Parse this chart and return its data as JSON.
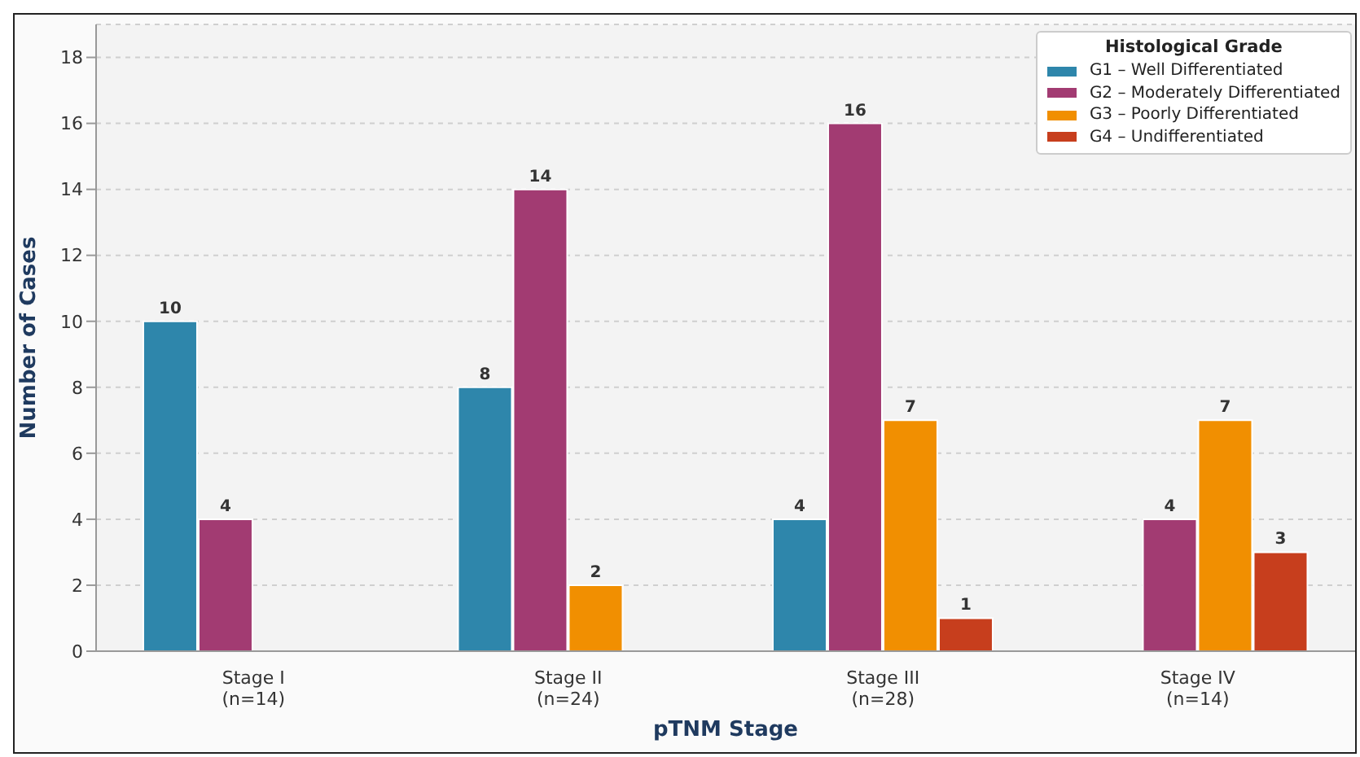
{
  "chart_data": {
    "type": "bar",
    "xlabel": "pTNM Stage",
    "ylabel": "Number of Cases",
    "legend_title": "Histological Grade",
    "categories": [
      "Stage I\n(n=14)",
      "Stage II\n(n=24)",
      "Stage III\n(n=28)",
      "Stage IV\n(n=14)"
    ],
    "series": [
      {
        "name": "G1 – Well Differentiated",
        "color": "#2e86ab",
        "values": [
          10,
          8,
          4,
          null
        ]
      },
      {
        "name": "G2 – Moderately Differentiated",
        "color": "#a23b72",
        "values": [
          4,
          14,
          16,
          4
        ]
      },
      {
        "name": "G3 – Poorly Differentiated",
        "color": "#f18f01",
        "values": [
          null,
          2,
          7,
          7
        ]
      },
      {
        "name": "G4 – Undifferentiated",
        "color": "#c73e1d",
        "values": [
          null,
          null,
          1,
          3
        ]
      }
    ],
    "ylim": [
      0,
      19
    ],
    "yticks": [
      0,
      2,
      4,
      6,
      8,
      10,
      12,
      14,
      16,
      18
    ],
    "grid": "y",
    "legend": "top right",
    "data_labels": true
  }
}
